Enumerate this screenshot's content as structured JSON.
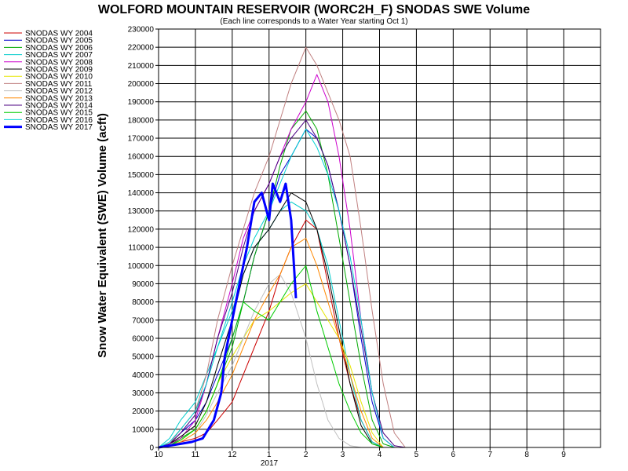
{
  "chart_data": {
    "type": "line",
    "title": "WOLFORD MOUNTAIN RESERVOIR (WORC2H_F) SNODAS SWE Volume",
    "subtitle": "(Each line corresponds to a Water Year starting Oct 1)",
    "ylabel": "Snow Water Equivalent (SWE) Volume (acft)",
    "xlabel": "",
    "year_label": "2017",
    "ylim": [
      0,
      230000
    ],
    "xlim": [
      0,
      12
    ],
    "y_ticks": [
      "0",
      "10000",
      "20000",
      "30000",
      "40000",
      "50000",
      "60000",
      "70000",
      "80000",
      "90000",
      "100000",
      "110000",
      "120000",
      "130000",
      "140000",
      "150000",
      "160000",
      "170000",
      "180000",
      "190000",
      "200000",
      "210000",
      "220000",
      "230000"
    ],
    "x_ticks": [
      "10",
      "11",
      "12",
      "1",
      "2",
      "3",
      "4",
      "5",
      "6",
      "7",
      "8",
      "9"
    ],
    "grid": true,
    "legend_position": "left",
    "series": [
      {
        "name": "SNODAS WY 2004",
        "color": "#cc0000",
        "width": 1,
        "x": [
          0,
          0.3,
          0.6,
          1,
          1.3,
          1.6,
          2,
          2.3,
          2.6,
          3,
          3.3,
          3.6,
          4,
          4.3,
          4.6,
          4.9,
          5.2,
          5.5,
          5.8,
          6.1,
          6.4
        ],
        "y": [
          0,
          1000,
          3000,
          5000,
          8000,
          15000,
          25000,
          40000,
          55000,
          75000,
          95000,
          110000,
          125000,
          120000,
          90000,
          60000,
          35000,
          15000,
          3000,
          0,
          0
        ]
      },
      {
        "name": "SNODAS WY 2005",
        "color": "#0000cc",
        "width": 1,
        "x": [
          0,
          0.3,
          0.6,
          1,
          1.3,
          1.6,
          2,
          2.3,
          2.6,
          3,
          3.3,
          3.6,
          4,
          4.3,
          4.6,
          4.9,
          5.2,
          5.5,
          5.8,
          6.1,
          6.4
        ],
        "y": [
          0,
          2000,
          8000,
          15000,
          25000,
          40000,
          60000,
          80000,
          105000,
          130000,
          150000,
          160000,
          175000,
          170000,
          155000,
          130000,
          100000,
          60000,
          25000,
          5000,
          0
        ]
      },
      {
        "name": "SNODAS WY 2006",
        "color": "#00aa00",
        "width": 1,
        "x": [
          0,
          0.3,
          0.6,
          1,
          1.3,
          1.6,
          2,
          2.3,
          2.6,
          3,
          3.3,
          3.6,
          4,
          4.3,
          4.6,
          4.9,
          5.2,
          5.5,
          5.8,
          6.1,
          6.4
        ],
        "y": [
          0,
          1000,
          5000,
          10000,
          20000,
          35000,
          55000,
          80000,
          105000,
          130000,
          155000,
          175000,
          185000,
          175000,
          150000,
          115000,
          80000,
          45000,
          15000,
          2000,
          0
        ]
      },
      {
        "name": "SNODAS WY 2007",
        "color": "#00cccc",
        "width": 1,
        "x": [
          0,
          0.3,
          0.6,
          1,
          1.3,
          1.6,
          2,
          2.3,
          2.6,
          3,
          3.3,
          3.6,
          4,
          4.3,
          4.6,
          4.9,
          5.2,
          5.5,
          5.8,
          6.1,
          6.4
        ],
        "y": [
          0,
          5000,
          15000,
          25000,
          40000,
          55000,
          75000,
          95000,
          110000,
          120000,
          130000,
          135000,
          130000,
          120000,
          100000,
          70000,
          40000,
          15000,
          3000,
          0,
          0
        ]
      },
      {
        "name": "SNODAS WY 2008",
        "color": "#cc00cc",
        "width": 1,
        "x": [
          0,
          0.3,
          0.6,
          1,
          1.3,
          1.6,
          2,
          2.3,
          2.6,
          3,
          3.3,
          3.6,
          4,
          4.3,
          4.6,
          4.9,
          5.2,
          5.5,
          5.8,
          6.1,
          6.4
        ],
        "y": [
          0,
          2000,
          5000,
          15000,
          35000,
          60000,
          90000,
          115000,
          130000,
          145000,
          160000,
          175000,
          190000,
          205000,
          190000,
          160000,
          120000,
          70000,
          30000,
          5000,
          0
        ]
      },
      {
        "name": "SNODAS WY 2009",
        "color": "#000000",
        "width": 1,
        "x": [
          0,
          0.3,
          0.6,
          1,
          1.3,
          1.6,
          2,
          2.3,
          2.6,
          3,
          3.3,
          3.6,
          4,
          4.3,
          4.6,
          4.9,
          5.2,
          5.5,
          5.8,
          6.1,
          6.4
        ],
        "y": [
          0,
          2000,
          6000,
          12000,
          25000,
          45000,
          70000,
          95000,
          110000,
          120000,
          130000,
          140000,
          135000,
          120000,
          95000,
          65000,
          35000,
          12000,
          2000,
          0,
          0
        ]
      },
      {
        "name": "SNODAS WY 2010",
        "color": "#e6e600",
        "width": 1,
        "x": [
          0,
          0.3,
          0.6,
          1,
          1.3,
          1.6,
          2,
          2.3,
          2.6,
          3,
          3.3,
          3.6,
          4,
          4.3,
          4.6,
          4.9,
          5.2,
          5.5,
          5.8,
          6.1,
          6.4
        ],
        "y": [
          0,
          1000,
          4000,
          10000,
          20000,
          35000,
          50000,
          60000,
          70000,
          75000,
          80000,
          85000,
          90000,
          80000,
          70000,
          60000,
          45000,
          25000,
          8000,
          0,
          0
        ]
      },
      {
        "name": "SNODAS WY 2011",
        "color": "#c08080",
        "width": 1,
        "x": [
          0,
          0.3,
          0.6,
          1,
          1.3,
          1.6,
          2,
          2.3,
          2.6,
          3,
          3.3,
          3.6,
          4,
          4.3,
          4.6,
          4.9,
          5.2,
          5.5,
          5.8,
          6.1,
          6.4,
          6.7
        ],
        "y": [
          0,
          2000,
          10000,
          20000,
          40000,
          70000,
          100000,
          120000,
          140000,
          160000,
          180000,
          200000,
          220000,
          210000,
          195000,
          180000,
          160000,
          120000,
          75000,
          35000,
          8000,
          0
        ]
      },
      {
        "name": "SNODAS WY 2012",
        "color": "#c0c0c0",
        "width": 1,
        "x": [
          0,
          0.3,
          0.6,
          1,
          1.3,
          1.6,
          2,
          2.3,
          2.6,
          3,
          3.3,
          3.6,
          4,
          4.3,
          4.6,
          4.9,
          5.2,
          5.5,
          5.8,
          6.1
        ],
        "y": [
          0,
          1000,
          3000,
          8000,
          18000,
          30000,
          45000,
          60000,
          75000,
          90000,
          95000,
          85000,
          60000,
          35000,
          15000,
          5000,
          1000,
          0,
          0,
          0
        ]
      },
      {
        "name": "SNODAS WY 2013",
        "color": "#ff8800",
        "width": 1,
        "x": [
          0,
          0.3,
          0.6,
          1,
          1.3,
          1.6,
          2,
          2.3,
          2.6,
          3,
          3.3,
          3.6,
          4,
          4.3,
          4.6,
          4.9,
          5.2,
          5.5,
          5.8,
          6.1,
          6.4
        ],
        "y": [
          0,
          1000,
          3000,
          8000,
          15000,
          25000,
          40000,
          55000,
          70000,
          85000,
          95000,
          110000,
          115000,
          100000,
          80000,
          60000,
          40000,
          20000,
          5000,
          0,
          0
        ]
      },
      {
        "name": "SNODAS WY 2014",
        "color": "#4b0082",
        "width": 1,
        "x": [
          0,
          0.3,
          0.6,
          1,
          1.3,
          1.6,
          2,
          2.3,
          2.6,
          3,
          3.3,
          3.6,
          4,
          4.3,
          4.6,
          4.9,
          5.2,
          5.5,
          5.8,
          6.1,
          6.4,
          6.7
        ],
        "y": [
          0,
          2000,
          8000,
          18000,
          35000,
          60000,
          85000,
          110000,
          130000,
          145000,
          160000,
          170000,
          180000,
          170000,
          155000,
          130000,
          100000,
          65000,
          30000,
          8000,
          1000,
          0
        ]
      },
      {
        "name": "SNODAS WY 2015",
        "color": "#00cc00",
        "width": 1,
        "x": [
          0,
          0.3,
          0.6,
          1,
          1.3,
          1.6,
          2,
          2.3,
          2.6,
          3,
          3.3,
          3.6,
          4,
          4.3,
          4.6,
          4.9,
          5.2,
          5.5,
          5.8,
          6.1,
          6.4
        ],
        "y": [
          0,
          1000,
          4000,
          10000,
          20000,
          35000,
          60000,
          80000,
          75000,
          70000,
          80000,
          90000,
          100000,
          75000,
          55000,
          35000,
          20000,
          8000,
          2000,
          0,
          0
        ]
      },
      {
        "name": "SNODAS WY 2016",
        "color": "#00d2d2",
        "width": 1,
        "x": [
          0,
          0.3,
          0.6,
          1,
          1.3,
          1.6,
          2,
          2.3,
          2.6,
          3,
          3.3,
          3.6,
          4,
          4.3,
          4.6,
          4.9,
          5.2,
          5.5,
          5.8,
          6.1,
          6.4
        ],
        "y": [
          0,
          3000,
          10000,
          20000,
          35000,
          55000,
          80000,
          100000,
          115000,
          130000,
          145000,
          160000,
          175000,
          165000,
          150000,
          130000,
          105000,
          70000,
          30000,
          5000,
          0
        ]
      },
      {
        "name": "SNODAS WY 2017",
        "color": "#0000ff",
        "width": 3,
        "x": [
          0,
          0.3,
          0.6,
          0.9,
          1.2,
          1.5,
          1.7,
          1.8,
          2.0,
          2.2,
          2.4,
          2.6,
          2.8,
          3.0,
          3.1,
          3.3,
          3.45,
          3.6,
          3.73
        ],
        "y": [
          0,
          1000,
          2000,
          3000,
          5000,
          15000,
          30000,
          50000,
          70000,
          90000,
          110000,
          135000,
          140000,
          125000,
          145000,
          135000,
          145000,
          125000,
          82000
        ]
      }
    ]
  }
}
